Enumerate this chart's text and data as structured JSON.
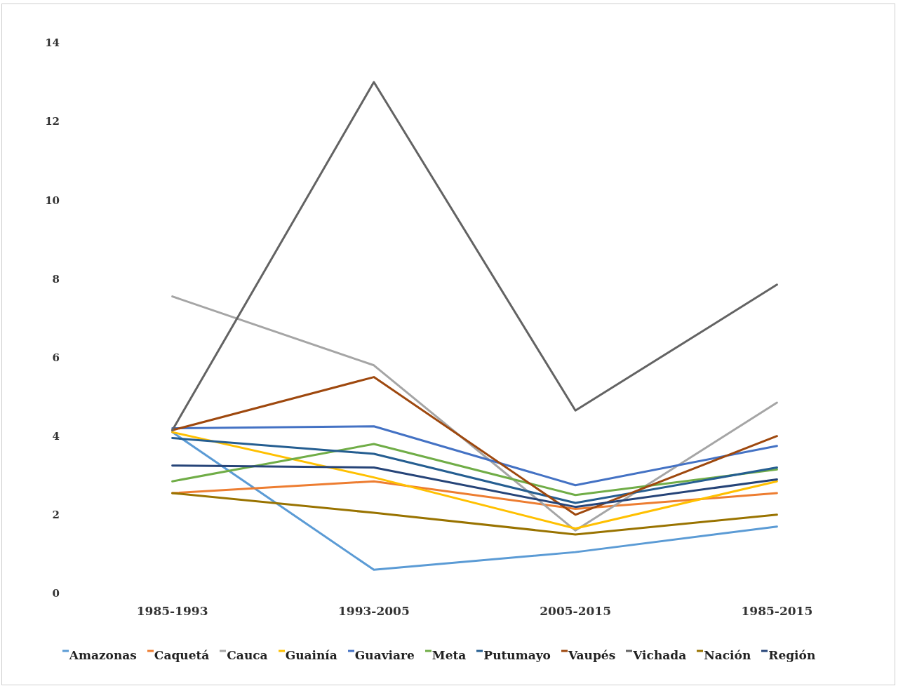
{
  "chart_data": {
    "type": "line",
    "categories": [
      "1985-1993",
      "1993-2005",
      "2005-2015",
      "1985-2015"
    ],
    "series": [
      {
        "name": "Amazonas",
        "color": "#5b9bd5",
        "values": [
          4.1,
          0.6,
          1.05,
          1.7
        ]
      },
      {
        "name": "Caquetá",
        "color": "#ed7d31",
        "values": [
          2.55,
          2.85,
          2.15,
          2.55
        ]
      },
      {
        "name": "Cauca",
        "color": "#a5a5a5",
        "values": [
          7.55,
          5.8,
          1.6,
          4.85
        ]
      },
      {
        "name": "Guainía",
        "color": "#ffc000",
        "values": [
          4.1,
          2.95,
          1.65,
          2.85
        ]
      },
      {
        "name": "Guaviare",
        "color": "#4472c4",
        "values": [
          4.2,
          4.25,
          2.75,
          3.75
        ]
      },
      {
        "name": "Meta",
        "color": "#70ad47",
        "values": [
          2.85,
          3.8,
          2.5,
          3.15
        ]
      },
      {
        "name": "Putumayo",
        "color": "#255e91",
        "values": [
          3.95,
          3.55,
          2.3,
          3.2
        ]
      },
      {
        "name": "Vaupés",
        "color": "#9e480e",
        "values": [
          4.15,
          5.5,
          2.0,
          4.0
        ]
      },
      {
        "name": "Vichada",
        "color": "#636363",
        "values": [
          4.15,
          13.0,
          4.65,
          7.85
        ]
      },
      {
        "name": "Nación",
        "color": "#997300",
        "values": [
          2.55,
          2.05,
          1.5,
          2.0
        ]
      },
      {
        "name": "Región",
        "color": "#264478",
        "values": [
          3.25,
          3.2,
          2.2,
          2.9
        ]
      }
    ],
    "ylim": [
      0,
      14
    ],
    "yticks": [
      0,
      2,
      4,
      6,
      8,
      10,
      12,
      14
    ],
    "legend": "bottom",
    "marker": "none"
  }
}
